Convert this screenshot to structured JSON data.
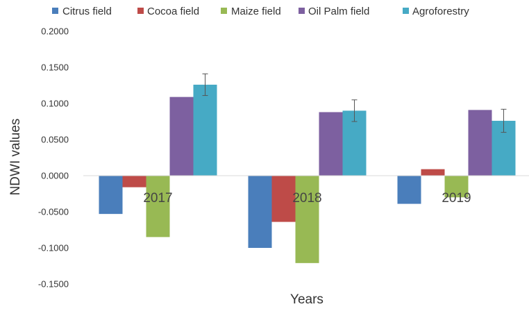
{
  "chart_data": {
    "type": "bar",
    "categories": [
      "2017",
      "2018",
      "2019"
    ],
    "series": [
      {
        "name": "Citrus field",
        "color": "#4a7ebb",
        "values": [
          -0.053,
          -0.1,
          -0.039
        ]
      },
      {
        "name": "Cocoa field",
        "color": "#be4b48",
        "values": [
          -0.016,
          -0.064,
          0.009
        ]
      },
      {
        "name": "Maize field",
        "color": "#98b954",
        "values": [
          -0.085,
          -0.121,
          -0.03
        ]
      },
      {
        "name": "Oil Palm field",
        "color": "#7d60a0",
        "values": [
          0.109,
          0.088,
          0.091
        ]
      },
      {
        "name": "Agroforestry",
        "color": "#46aac5",
        "values": [
          0.126,
          0.09,
          0.076
        ],
        "error": [
          0.015,
          0.015,
          0.016
        ]
      }
    ],
    "xlabel": "Years",
    "ylabel": "NDWI values",
    "ylim": [
      -0.15,
      0.2
    ],
    "yticks": [
      "0.2000",
      "0.1500",
      "0.1000",
      "0.0500",
      "0.0000",
      "-0.0500",
      "-0.1000",
      "-0.1500"
    ],
    "legend_position": "top",
    "grid": false
  }
}
